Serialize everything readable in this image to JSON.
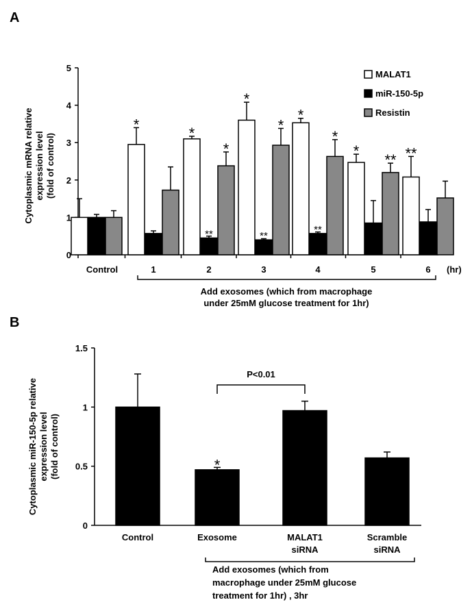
{
  "panels": {
    "a": {
      "letter": "A",
      "ylabel_lines": [
        "Cytoplasmic mRNA relative",
        "expression level",
        "(fold of control)"
      ],
      "x_unit": "(hr)",
      "bracket_lines": [
        "Add exosomes (which from macrophage",
        "under 25mM glucose treatment for 1hr)"
      ]
    },
    "b": {
      "letter": "B",
      "ylabel_lines": [
        "Cytoplasmic miR-150-5p relative",
        "expression level",
        "(fold of control)"
      ],
      "significance": "P<0.01",
      "bracket_lines": [
        "Add exosomes (which from",
        "macrophage under 25mM glucose",
        "treatment for 1hr) , 3hr"
      ]
    }
  },
  "chart_data": [
    {
      "type": "bar",
      "categories": [
        "Control",
        "1",
        "2",
        "3",
        "4",
        "5",
        "6"
      ],
      "ylim": [
        0,
        5
      ],
      "yticks": [
        0,
        1,
        2,
        3,
        4,
        5
      ],
      "legend_position": "top-right",
      "series": [
        {
          "name": "MALAT1",
          "color": "#ffffff",
          "values": [
            1.0,
            2.95,
            3.1,
            3.6,
            3.53,
            2.47,
            2.08
          ],
          "errors": [
            0.5,
            0.45,
            0.07,
            0.48,
            0.12,
            0.22,
            0.55
          ],
          "marks": [
            "",
            "*",
            "*",
            "*",
            "*",
            "*",
            "**"
          ]
        },
        {
          "name": "miR-150-5p",
          "color": "#000000",
          "values": [
            1.0,
            0.57,
            0.45,
            0.4,
            0.57,
            0.85,
            0.88
          ],
          "errors": [
            0.08,
            0.07,
            0.05,
            0.03,
            0.04,
            0.6,
            0.33
          ],
          "marks": [
            "",
            "",
            "**",
            "**",
            "**",
            "",
            ""
          ]
        },
        {
          "name": "Resistin",
          "color": "#888888",
          "values": [
            1.0,
            1.73,
            2.38,
            2.93,
            2.63,
            2.2,
            1.52
          ],
          "errors": [
            0.18,
            0.62,
            0.37,
            0.45,
            0.45,
            0.25,
            0.45
          ],
          "marks": [
            "",
            "",
            "*",
            "*",
            "*",
            "**",
            ""
          ]
        }
      ]
    },
    {
      "type": "bar",
      "categories": [
        "Control",
        "Exosome",
        "MALAT1\nsiRNA",
        "Scramble\nsiRNA"
      ],
      "ylim": [
        0,
        1.5
      ],
      "yticks": [
        "0",
        "0.5",
        "1",
        "1.5"
      ],
      "series": [
        {
          "color": "#000000",
          "values": [
            1.0,
            0.47,
            0.97,
            0.57
          ],
          "errors": [
            0.28,
            0.02,
            0.08,
            0.05
          ],
          "marks": [
            "",
            "*",
            "",
            ""
          ]
        }
      ]
    }
  ]
}
